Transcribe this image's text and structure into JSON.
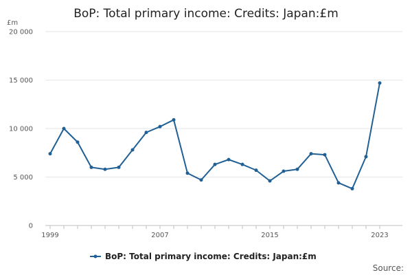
{
  "chart_data": {
    "type": "line",
    "title": "BoP: Total primary income: Credits: Japan:£m",
    "ylabel": "£m",
    "xlabel": "",
    "ylim": [
      0,
      20000
    ],
    "yticks": [
      0,
      5000,
      10000,
      15000,
      20000
    ],
    "ytick_labels": [
      "0",
      "5 000",
      "10 000",
      "15 000",
      "20 000"
    ],
    "xtick_labels": [
      "1999",
      "2007",
      "2015",
      "2023"
    ],
    "x": [
      1999,
      2000,
      2001,
      2002,
      2003,
      2004,
      2005,
      2006,
      2007,
      2008,
      2009,
      2010,
      2011,
      2012,
      2013,
      2014,
      2015,
      2016,
      2017,
      2018,
      2019,
      2020,
      2021,
      2022,
      2023
    ],
    "series": [
      {
        "name": "BoP: Total primary income: Credits: Japan:£m",
        "color": "#206095",
        "values": [
          7400,
          10000,
          8600,
          6000,
          5800,
          6000,
          7800,
          9600,
          10200,
          10900,
          5400,
          4700,
          6300,
          6800,
          6300,
          5700,
          4600,
          5600,
          5800,
          7400,
          7300,
          4400,
          3800,
          7100,
          14700
        ]
      }
    ],
    "grid": true,
    "legend_position": "bottom"
  },
  "source_label": "Source:"
}
